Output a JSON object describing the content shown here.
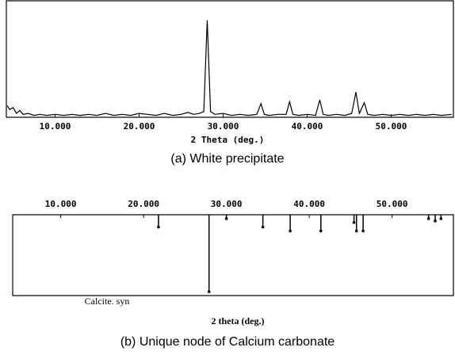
{
  "chart_data": [
    {
      "type": "line",
      "caption": "(a)  White precipitate",
      "xlabel": "2 Theta (deg.)",
      "xlim": [
        4.2,
        57.4
      ],
      "ylim": [
        0,
        120
      ],
      "xticks": [
        {
          "value": 10,
          "label": "10.000"
        },
        {
          "value": 20,
          "label": "20.000"
        },
        {
          "value": 30,
          "label": "30.000"
        },
        {
          "value": 40,
          "label": "40.000"
        },
        {
          "value": 50,
          "label": "50.000"
        }
      ],
      "color": "#000000",
      "x": [
        4.3,
        4.6,
        5.0,
        5.4,
        5.8,
        6.2,
        6.8,
        7.5,
        8.2,
        9.0,
        10,
        11,
        12,
        13,
        14,
        15,
        16,
        17,
        18,
        19,
        20,
        21,
        22,
        23,
        24,
        25,
        25.8,
        26.5,
        27.2,
        27.7,
        28.1,
        28.5,
        29.0,
        30,
        31,
        32,
        33,
        34,
        34.5,
        34.9,
        35.5,
        36.5,
        37.5,
        37.9,
        38.3,
        39,
        40,
        41,
        41.5,
        41.9,
        42.5,
        43.5,
        44.5,
        45.3,
        45.8,
        46.2,
        46.8,
        47.2,
        48,
        49,
        50,
        51,
        52,
        53,
        54,
        55,
        56,
        57.2
      ],
      "values": [
        12,
        8,
        10,
        4,
        7,
        3,
        4,
        2,
        3,
        2,
        3,
        2,
        3,
        2,
        3,
        2,
        4,
        2,
        3,
        2,
        4,
        3,
        2,
        4,
        2,
        3,
        5,
        3,
        4,
        6,
        100,
        6,
        3,
        4,
        2,
        3,
        2,
        3,
        14,
        3,
        2,
        3,
        3,
        16,
        3,
        2,
        3,
        2,
        18,
        3,
        2,
        3,
        2,
        4,
        26,
        4,
        15,
        3,
        2,
        3,
        2,
        3,
        2,
        3,
        2,
        3,
        2,
        3
      ]
    },
    {
      "type": "stick",
      "caption": "(b) Unique node of Calcium carbonate",
      "xlabel": "2 theta (deg.)",
      "label": "Calcite. syn",
      "xlim": [
        4.2,
        57.4
      ],
      "ylim": [
        0,
        105
      ],
      "xticks": [
        {
          "value": 10,
          "label": "10.000"
        },
        {
          "value": 20,
          "label": "20.000"
        },
        {
          "value": 30,
          "label": "30.000"
        },
        {
          "value": 40,
          "label": "40.000"
        },
        {
          "value": 50,
          "label": "50.000"
        }
      ],
      "color": "#000000",
      "x": [
        21.8,
        27.9,
        30.0,
        34.4,
        37.7,
        41.4,
        45.4,
        45.7,
        46.5,
        54.4,
        55.2,
        55.9
      ],
      "values": [
        16,
        100,
        5,
        16,
        21,
        21,
        10,
        21,
        21,
        5,
        8,
        5
      ]
    }
  ]
}
